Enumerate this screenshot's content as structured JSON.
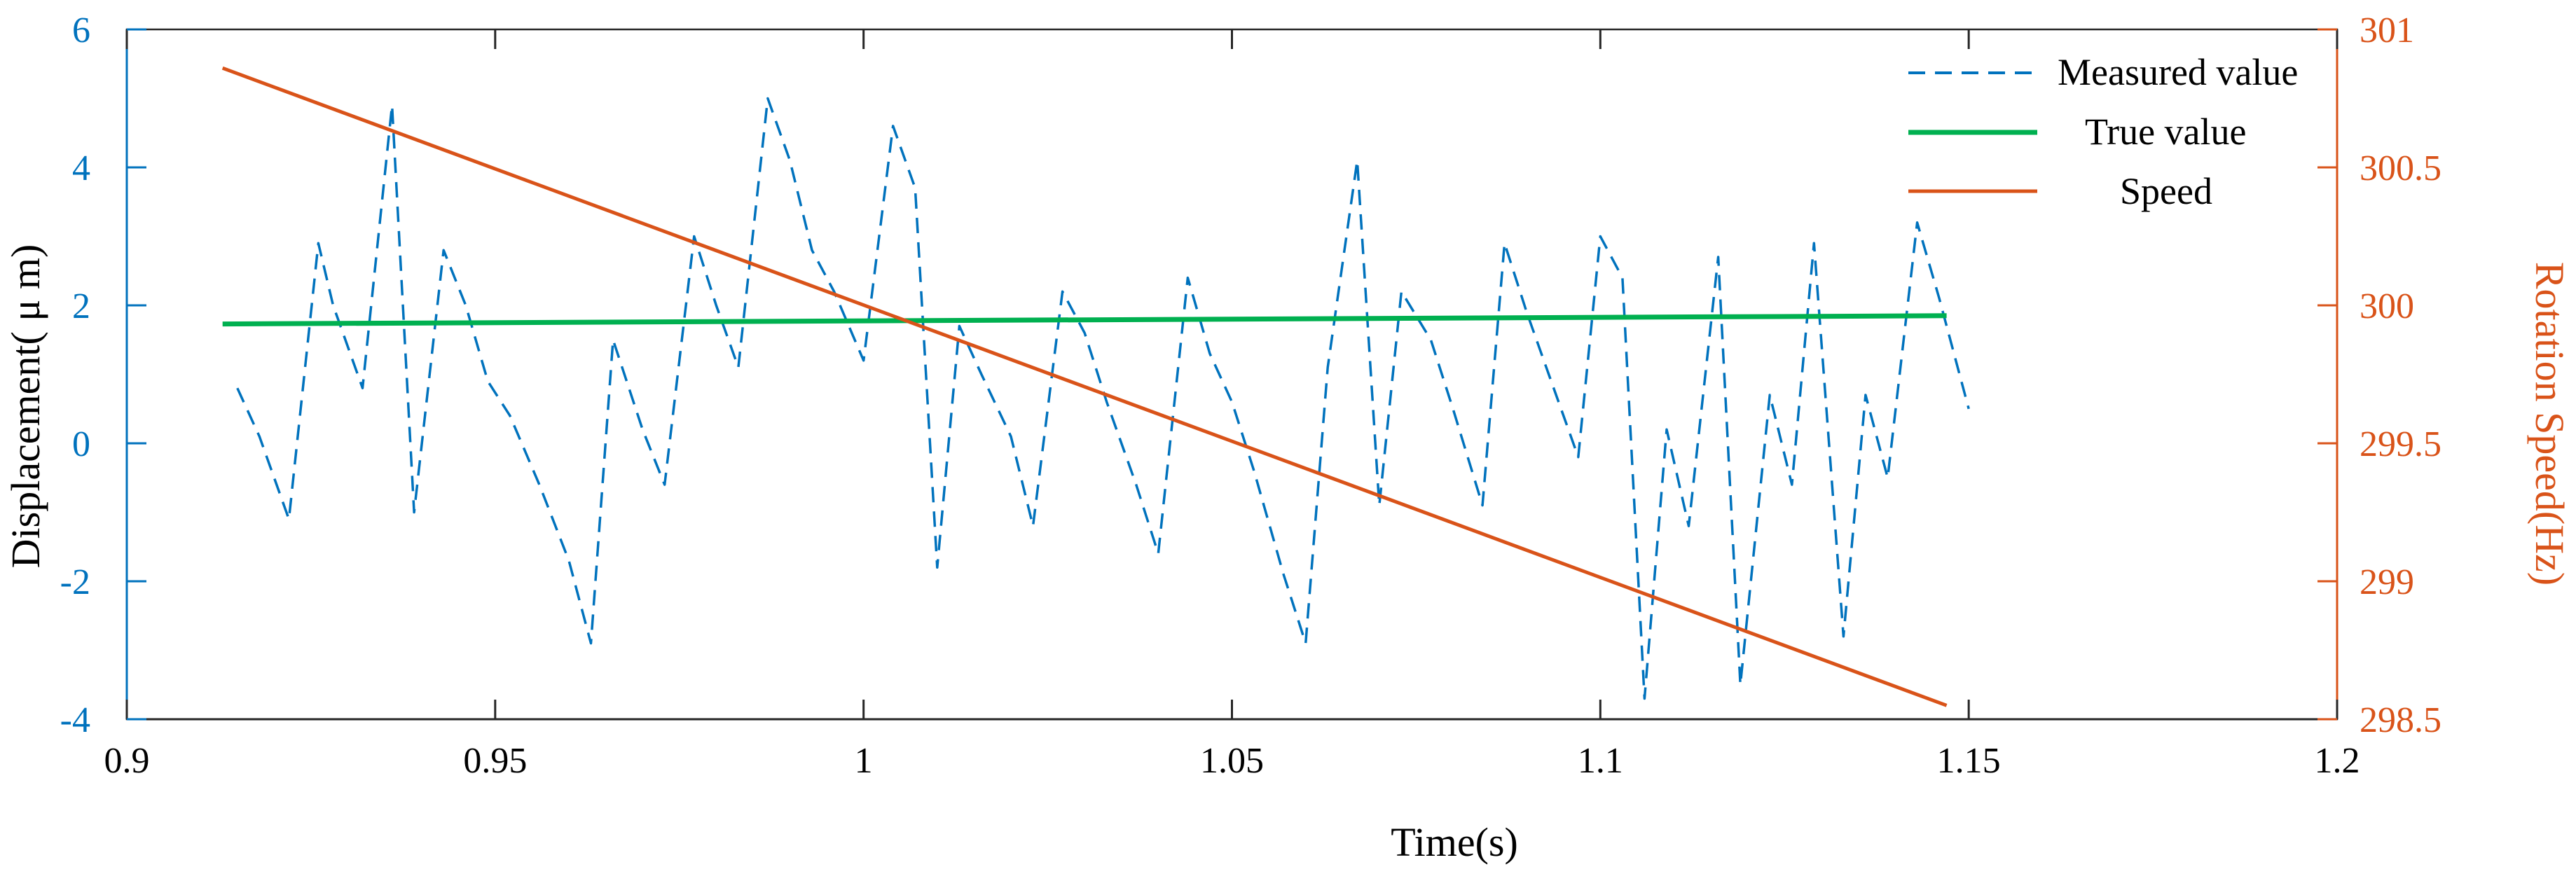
{
  "chart_data": {
    "type": "line",
    "title": "",
    "xlabel": "Time(s)",
    "ylabel_left": "Displacement( μ m)",
    "ylabel_right": "Rotation Speed(Hz)",
    "xlim": [
      0.9,
      1.2
    ],
    "ylim_left": [
      -4,
      6
    ],
    "ylim_right": [
      298.5,
      301
    ],
    "x_ticks": [
      0.9,
      0.95,
      1,
      1.05,
      1.1,
      1.15,
      1.2
    ],
    "x_tick_labels": [
      "0.9",
      "0.95",
      "1",
      "1.05",
      "1.1",
      "1.15",
      "1.2"
    ],
    "y_left_ticks": [
      -4,
      -2,
      0,
      2,
      4,
      6
    ],
    "y_left_tick_labels": [
      "-4",
      "-2",
      "0",
      "2",
      "4",
      "6"
    ],
    "y_right_ticks": [
      298.5,
      299,
      299.5,
      300,
      300.5,
      301
    ],
    "y_right_tick_labels": [
      "298.5",
      "299",
      "299.5",
      "300",
      "300.5",
      "301"
    ],
    "grid": false,
    "legend_position": "top-right",
    "colors": {
      "measured": "#0072BD",
      "true": "#00B050",
      "speed": "#D95319",
      "left_axis": "#0072BD",
      "right_axis": "#D95319"
    },
    "series": [
      {
        "name": "Measured value",
        "axis": "left",
        "style": "dashed",
        "x": [
          0.915,
          0.918,
          0.922,
          0.926,
          0.928,
          0.932,
          0.936,
          0.939,
          0.943,
          0.946,
          0.949,
          0.952,
          0.956,
          0.96,
          0.963,
          0.966,
          0.97,
          0.973,
          0.977,
          0.98,
          0.983,
          0.987,
          0.99,
          0.993,
          0.996,
          1.0,
          1.004,
          1.007,
          1.01,
          1.013,
          1.016,
          1.02,
          1.023,
          1.027,
          1.03,
          1.033,
          1.037,
          1.04,
          1.044,
          1.047,
          1.05,
          1.053,
          1.057,
          1.06,
          1.063,
          1.067,
          1.07,
          1.073,
          1.077,
          1.08,
          1.084,
          1.087,
          1.09,
          1.093,
          1.097,
          1.1,
          1.103,
          1.106,
          1.109,
          1.112,
          1.116,
          1.119,
          1.123,
          1.126,
          1.129,
          1.133,
          1.136,
          1.139,
          1.143,
          1.146,
          1.15
        ],
        "values": [
          0.8,
          0.1,
          -1.1,
          2.9,
          2.0,
          0.8,
          4.9,
          -1.0,
          2.8,
          2.0,
          0.9,
          0.4,
          -0.6,
          -1.7,
          -2.9,
          1.5,
          0.2,
          -0.6,
          3.0,
          2.0,
          1.1,
          5.0,
          4.1,
          2.8,
          2.2,
          1.2,
          4.6,
          3.7,
          -1.8,
          1.7,
          1.0,
          0.1,
          -1.2,
          2.2,
          1.6,
          0.6,
          -0.6,
          -1.6,
          2.4,
          1.3,
          0.6,
          -0.4,
          -1.9,
          -2.9,
          1.1,
          4.1,
          -0.9,
          2.2,
          1.5,
          0.5,
          -0.9,
          2.9,
          1.9,
          1.0,
          -0.2,
          3.0,
          2.4,
          -3.7,
          0.2,
          -1.2,
          2.7,
          -3.5,
          0.7,
          -0.6,
          2.9,
          -2.8,
          0.7,
          -0.5,
          3.2,
          2.1,
          0.5
        ]
      },
      {
        "name": "True value",
        "axis": "left",
        "style": "solid",
        "x": [
          0.913,
          1.147
        ],
        "values": [
          1.73,
          1.85
        ]
      },
      {
        "name": "Speed",
        "axis": "right",
        "style": "solid",
        "x": [
          0.913,
          1.147
        ],
        "values": [
          300.86,
          298.55
        ]
      }
    ],
    "legend": [
      {
        "label": "Measured value",
        "series": "measured"
      },
      {
        "label": "True value",
        "series": "true"
      },
      {
        "label": "Speed",
        "series": "speed"
      }
    ]
  }
}
